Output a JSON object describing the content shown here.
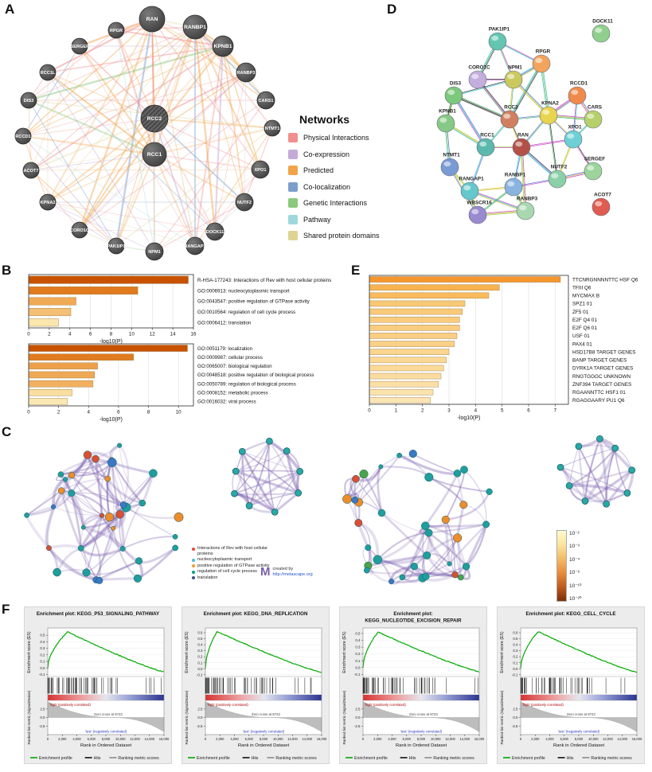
{
  "labels": {
    "A": "A",
    "B": "B",
    "C": "C",
    "D": "D",
    "E": "E",
    "F": "F"
  },
  "panel_a": {
    "legend_title": "Networks",
    "legend": [
      {
        "label": "Physical Interactions",
        "color": "#f08f8f"
      },
      {
        "label": "Co-expression",
        "color": "#c5a9d6"
      },
      {
        "label": "Predicted",
        "color": "#f2a44a"
      },
      {
        "label": "Co-localization",
        "color": "#7d9ecb"
      },
      {
        "label": "Genetic Interactions",
        "color": "#8cc87e"
      },
      {
        "label": "Pathway",
        "color": "#9ed8dc"
      },
      {
        "label": "Shared protein domains",
        "color": "#ded395"
      }
    ],
    "nodes": [
      "RAN",
      "RANBP1",
      "KPNB1",
      "RPGR",
      "SERGEF",
      "RANBP3",
      "RCC1L",
      "CARS1",
      "DIS3",
      "RCC2",
      "NTMT1",
      "RCCD1",
      "RCC1",
      "XPO1",
      "ACOT7",
      "KPNA2",
      "NUTF2",
      "CORO1C",
      "DOCK11",
      "PAK1IP1",
      "NPM1",
      "RANGAP1"
    ],
    "query_nodes": [
      "RCC2"
    ]
  },
  "panel_d": {
    "nodes": [
      {
        "name": "PAK1IP1",
        "color": "#63c6b0"
      },
      {
        "name": "DOCK11",
        "color": "#8fd08c"
      },
      {
        "name": "RPGR",
        "color": "#f2a45c"
      },
      {
        "name": "NPM1",
        "color": "#c9c95e"
      },
      {
        "name": "CORO1C",
        "color": "#c3aede"
      },
      {
        "name": "RCCD1",
        "color": "#ef8a4c"
      },
      {
        "name": "DIS3",
        "color": "#7cc87c"
      },
      {
        "name": "KPNA2",
        "color": "#e8d44f"
      },
      {
        "name": "CARS",
        "color": "#b7d06b"
      },
      {
        "name": "KPNB1",
        "color": "#86c986"
      },
      {
        "name": "RCC2",
        "color": "#d08060"
      },
      {
        "name": "XPO1",
        "color": "#6ecfd4"
      },
      {
        "name": "RCC1",
        "color": "#5bb8ac"
      },
      {
        "name": "RAN",
        "color": "#b35148"
      },
      {
        "name": "SERGEF",
        "color": "#9cd49c"
      },
      {
        "name": "NTMT1",
        "color": "#7a9ad4"
      },
      {
        "name": "NUTF2",
        "color": "#8cd0a8"
      },
      {
        "name": "RANGAP1",
        "color": "#64c8cc"
      },
      {
        "name": "RANBP1",
        "color": "#8ab4e0"
      },
      {
        "name": "ACOT7",
        "color": "#e05c50"
      },
      {
        "name": "WBSCR16",
        "color": "#9a8ad0"
      },
      {
        "name": "RANBP3",
        "color": "#a8d8b0"
      }
    ]
  },
  "chart_data": [
    {
      "id": "panel_b_top",
      "type": "bar",
      "orientation": "horizontal",
      "xlabel": "-log10(P)",
      "xlim": [
        0,
        16
      ],
      "xticks": [
        0,
        2,
        4,
        6,
        8,
        10,
        12,
        14,
        16
      ],
      "categories": [
        "R-HSA-177243: Interactions of Rev with host cellular proteins",
        "GO:0006913: nucleocytoplasmic transport",
        "GO:0043547: positive regulation of GTPase activity",
        "GO:0010564: regulation of cell cycle process",
        "GO:0006412: translation"
      ],
      "values": [
        15.5,
        10.6,
        4.6,
        4.1,
        2.9
      ],
      "colors": [
        "#c85200",
        "#e07b1e",
        "#f0a955",
        "#f4c076",
        "#f9e7ae"
      ]
    },
    {
      "id": "panel_b_bottom",
      "type": "bar",
      "orientation": "horizontal",
      "xlabel": "-log10(P)",
      "xlim": [
        0,
        11
      ],
      "xticks": [
        0,
        2,
        4,
        6,
        8,
        10
      ],
      "categories": [
        "GO:0051179: localization",
        "GO:0009987: cellular process",
        "GO:0065007: biological regulation",
        "GO:0048518: positive regulation of biological process",
        "GO:0050789: regulation of biological process",
        "GO:0008152: metabolic process",
        "GO:0016032: viral process"
      ],
      "values": [
        10.6,
        7.0,
        4.6,
        4.4,
        4.3,
        2.9,
        2.6
      ],
      "colors": [
        "#c85200",
        "#e07b1e",
        "#eda04b",
        "#efa854",
        "#f1b060",
        "#f8dfa0",
        "#fae8b4"
      ]
    },
    {
      "id": "panel_e",
      "type": "bar",
      "orientation": "horizontal",
      "xlabel": "-log10(P)",
      "xlim": [
        0,
        7.5
      ],
      "xticks": [
        0,
        1,
        2,
        3,
        4,
        5,
        6,
        7
      ],
      "categories": [
        "TTCNRGNNNNTTC HSF Q6",
        "TFIII Q6",
        "MYCMAX B",
        "SPZ1 01",
        "ZF5 01",
        "E2F Q4 01",
        "E2F Q6 01",
        "USF 01",
        "PAX4 01",
        "HSD17B8 TARGET GENES",
        "BANP TARGET GENES",
        "DYRK1A TARGET GENES",
        "RNGTGGGC UNKNOWN",
        "ZNF394 TARGET GENES",
        "RGAANNTTC HSF1 01",
        "RGAGGAARY PU1 Q6"
      ],
      "values": [
        7.2,
        4.9,
        4.5,
        3.6,
        3.5,
        3.4,
        3.4,
        3.3,
        3.2,
        3.0,
        2.9,
        2.8,
        2.7,
        2.6,
        2.4,
        2.3
      ],
      "colors": [
        "#f6962c",
        "#f8b350",
        "#f8ba5c",
        "#f9c876",
        "#f9ca7a",
        "#f9cb7d",
        "#f9cc80",
        "#f9ce84",
        "#fad088",
        "#fad590",
        "#fad794",
        "#fbd998",
        "#fbdca0",
        "#fbdfa6",
        "#fbe3ae",
        "#fce5b4"
      ]
    },
    {
      "id": "gsea_plots",
      "type": "line",
      "plots": [
        {
          "title": "Enrichment plot: KEGG_P53_SIGNALING_PATHWAY",
          "es_peak": 0.55,
          "peak_frac": 0.17
        },
        {
          "title": "Enrichment plot: KEGG_DNA_REPLICATION",
          "es_peak": 0.62,
          "peak_frac": 0.1
        },
        {
          "title": "Enrichment plot: KEGG_NUCLEOTIDE_EXCISION_REPAIR",
          "es_peak": 0.52,
          "peak_frac": 0.13
        },
        {
          "title": "Enrichment plot: KEGG_CELL_CYCLE",
          "es_peak": 0.62,
          "peak_frac": 0.15
        }
      ],
      "zero_cross_text": "Zero cross at 8723",
      "xlabel": "Rank in Ordered Dataset",
      "ylabel_top": "Enrichment score (ES)",
      "ylabel_bottom": "Ranked list metric (Signal2Noise)",
      "annotation_pos": "'high' (positively correlated)",
      "annotation_neg": "'test' (negatively correlated)",
      "xticks": [
        "0",
        "2,000",
        "4,000",
        "6,000",
        "8,000",
        "10,000",
        "12,000",
        "14,000",
        "16,000"
      ],
      "yticks_bottom": [
        "2.5",
        "0.0",
        "-2.5"
      ],
      "legend": [
        {
          "label": "Enrichment profile",
          "color": "#00aa00"
        },
        {
          "label": "Hits",
          "color": "#111111"
        },
        {
          "label": "Ranking metric scores",
          "color": "#8a8a8a"
        }
      ]
    }
  ],
  "panel_c": {
    "legend": [
      {
        "label": "Interactions of Rev with host cellular proteins",
        "color": "#e64b35"
      },
      {
        "label": "nucleocytoplasmic transport",
        "color": "#4dbbd5"
      },
      {
        "label": "positive regulation of GTPase activity",
        "color": "#f39b2c"
      },
      {
        "label": "regulation of cell cycle process",
        "color": "#00a087"
      },
      {
        "label": "translation",
        "color": "#3c5488"
      }
    ],
    "credit_prefix": "created by",
    "credit_url": "http://metascape.org",
    "scale_labels": [
      "10⁻²",
      "10⁻³",
      "10⁻⁴",
      "10⁻⁶",
      "10⁻¹⁰",
      "10⁻²⁰"
    ],
    "scale_colors": [
      "#fffbd0",
      "#fbe49c",
      "#f3bb66",
      "#e88b3a",
      "#c05a1e",
      "#7a2f08"
    ]
  }
}
